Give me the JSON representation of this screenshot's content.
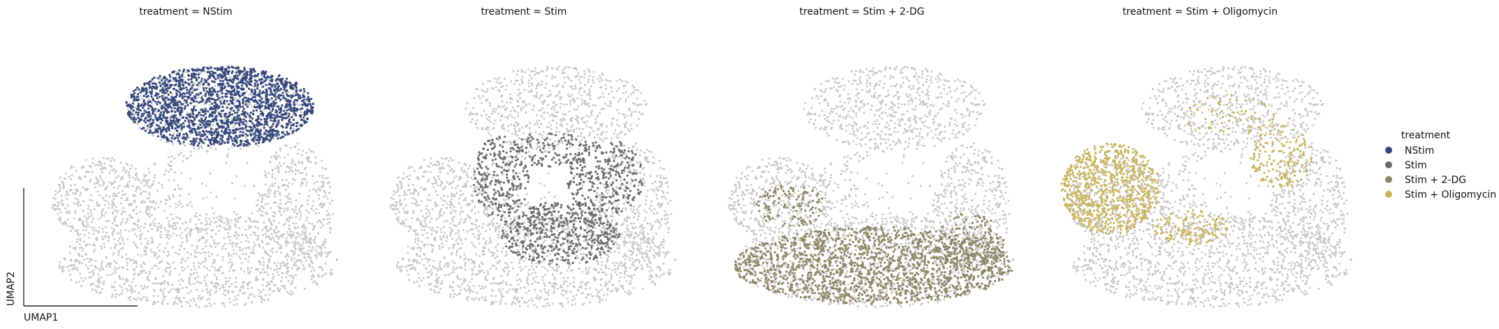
{
  "chart_data": {
    "type": "scatter",
    "title": "",
    "xlabel": "UMAP1",
    "ylabel": "UMAP2",
    "background_color": "#c8c8c8",
    "panels": [
      {
        "title": "treatment = NStim",
        "highlight": "NStim"
      },
      {
        "title": "treatment = Stim",
        "highlight": "Stim"
      },
      {
        "title": "treatment = Stim + 2-DG",
        "highlight": "Stim + 2-DG"
      },
      {
        "title": "treatment = Stim + Oligomycin",
        "highlight": "Stim + Oligomycin"
      }
    ],
    "legend": {
      "title": "treatment",
      "placement": "right",
      "items": [
        {
          "label": "NStim",
          "color": "#35467a"
        },
        {
          "label": "Stim",
          "color": "#6b6b6e"
        },
        {
          "label": "Stim + 2-DG",
          "color": "#8c8668"
        },
        {
          "label": "Stim + Oligomycin",
          "color": "#c9b55f"
        }
      ]
    },
    "grid": false
  }
}
